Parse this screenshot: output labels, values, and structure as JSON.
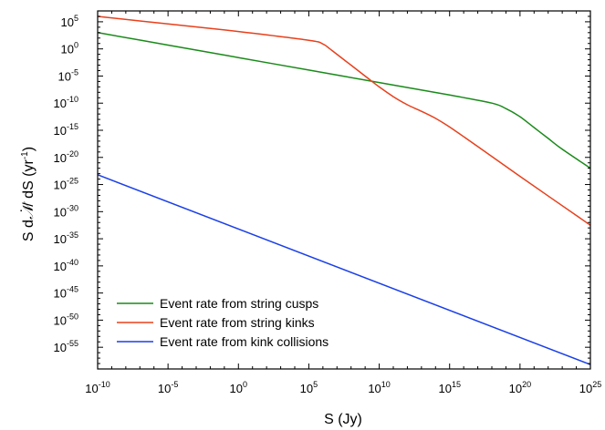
{
  "chart_data": {
    "type": "line",
    "title": "",
    "xlabel": "S (Jy)",
    "ylabel_prefix": "S d",
    "ylabel_symbol": "𝒩",
    "ylabel_dot": "·",
    "ylabel_mid": "/ dS  (yr",
    "ylabel_sup": "-1",
    "ylabel_end": ")",
    "x_scale": "log",
    "y_scale": "log",
    "xlim_exp": [
      -10,
      25
    ],
    "ylim_exp": [
      -59,
      7
    ],
    "grid": false,
    "legend_position": "bottom-left",
    "x_ticks": [
      {
        "base": "10",
        "exp": "-10",
        "value": -10
      },
      {
        "base": "10",
        "exp": "-5",
        "value": -5
      },
      {
        "base": "10",
        "exp": "0",
        "value": 0
      },
      {
        "base": "10",
        "exp": "5",
        "value": 5
      },
      {
        "base": "10",
        "exp": "10",
        "value": 10
      },
      {
        "base": "10",
        "exp": "15",
        "value": 15
      },
      {
        "base": "10",
        "exp": "20",
        "value": 20
      },
      {
        "base": "10",
        "exp": "25",
        "value": 25
      }
    ],
    "y_ticks": [
      {
        "base": "10",
        "exp": "5",
        "value": 5
      },
      {
        "base": "10",
        "exp": "0",
        "value": 0
      },
      {
        "base": "10",
        "exp": "-5",
        "value": -5
      },
      {
        "base": "10",
        "exp": "-10",
        "value": -10
      },
      {
        "base": "10",
        "exp": "-15",
        "value": -15
      },
      {
        "base": "10",
        "exp": "-20",
        "value": -20
      },
      {
        "base": "10",
        "exp": "-25",
        "value": -25
      },
      {
        "base": "10",
        "exp": "-30",
        "value": -30
      },
      {
        "base": "10",
        "exp": "-35",
        "value": -35
      },
      {
        "base": "10",
        "exp": "-40",
        "value": -40
      },
      {
        "base": "10",
        "exp": "-45",
        "value": -45
      },
      {
        "base": "10",
        "exp": "-50",
        "value": -50
      },
      {
        "base": "10",
        "exp": "-55",
        "value": -55
      }
    ],
    "series": [
      {
        "name": "Event rate from string cusps",
        "color": "#1a8a1a",
        "log_x": [
          -10,
          -5,
          0,
          5,
          10,
          15,
          18,
          19,
          20,
          21,
          22,
          23,
          25
        ],
        "log_y": [
          3.0,
          0.7,
          -1.6,
          -3.9,
          -6.2,
          -8.5,
          -10.0,
          -11.0,
          -12.5,
          -14.5,
          -16.5,
          -18.5,
          -22.0
        ]
      },
      {
        "name": "Event rate from string kinks",
        "color": "#e8401c",
        "log_x": [
          -10,
          -5,
          0,
          5,
          6,
          6.5,
          7,
          8,
          9,
          10,
          11,
          12,
          13,
          14,
          15,
          17,
          20,
          25
        ],
        "log_y": [
          6.0,
          4.6,
          3.2,
          1.6,
          0.9,
          0.0,
          -1.0,
          -3.0,
          -5.0,
          -7.0,
          -8.8,
          -10.3,
          -11.5,
          -12.8,
          -14.4,
          -18.0,
          -23.5,
          -32.5
        ]
      },
      {
        "name": "Event rate from kink collisions",
        "color": "#1a3fe8",
        "log_x": [
          -10,
          25
        ],
        "log_y": [
          -23.2,
          -58.2
        ]
      }
    ]
  }
}
